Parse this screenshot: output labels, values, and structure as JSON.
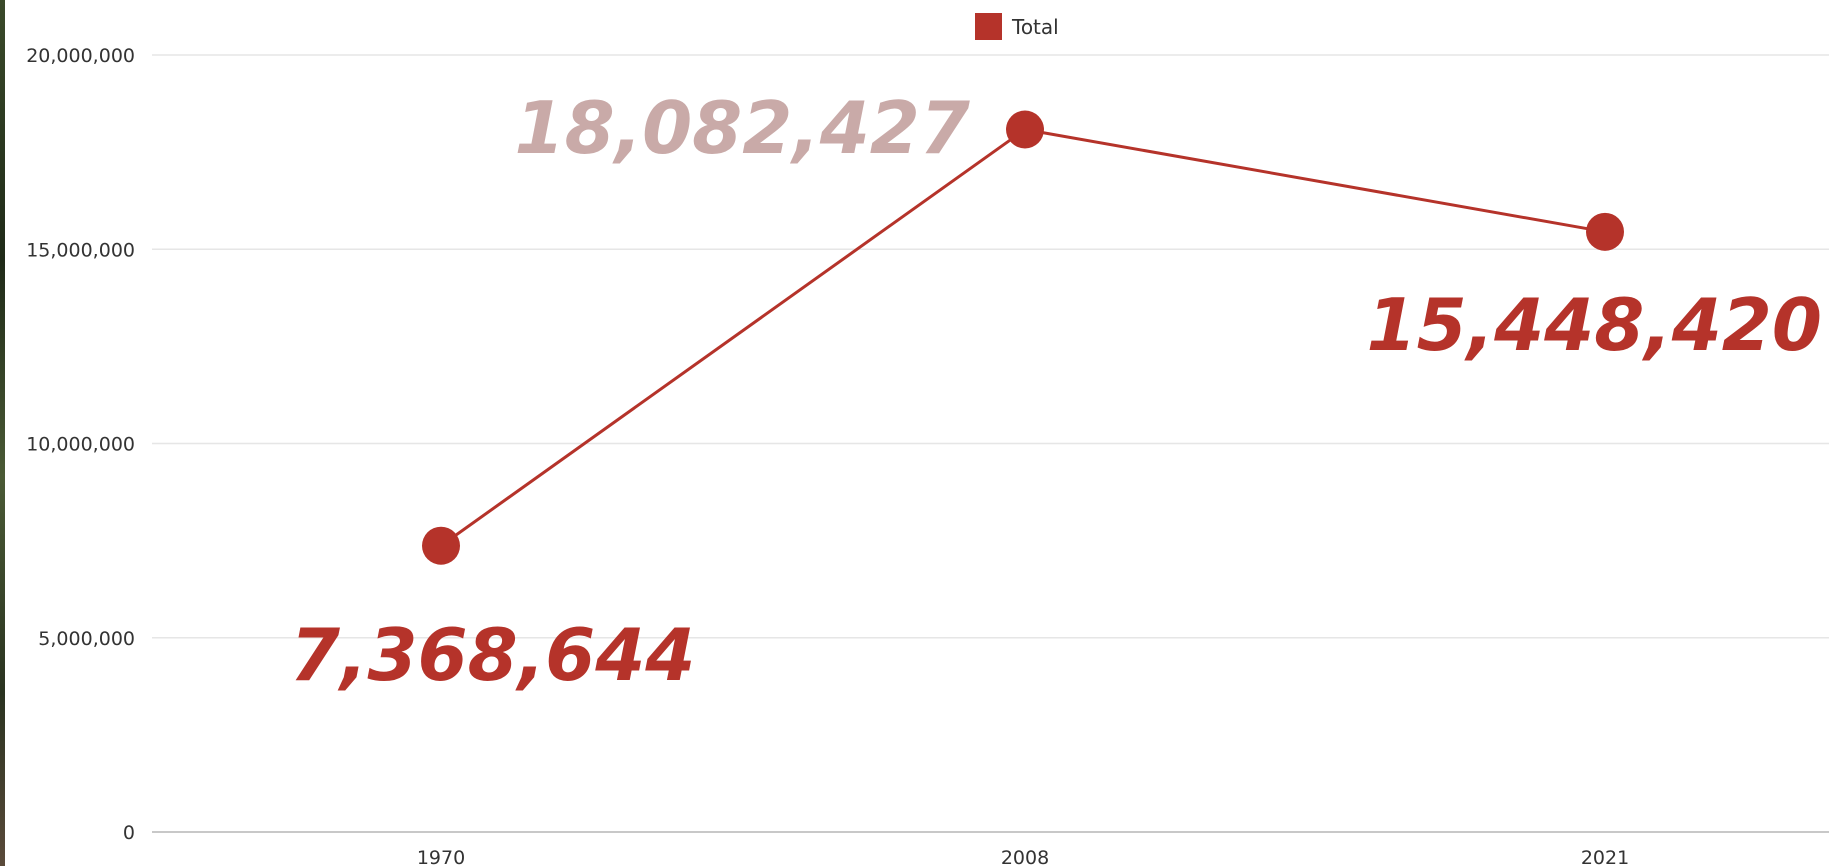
{
  "chart_data": {
    "type": "line",
    "categories": [
      "1970",
      "2008",
      "2021"
    ],
    "series": [
      {
        "name": "Total",
        "values": [
          7368644,
          18082427,
          15448420
        ],
        "color": "#b5332a"
      }
    ],
    "data_labels": [
      "7,368,644",
      "18,082,427",
      "15,448,420"
    ],
    "data_label_colors": [
      "#b5332a",
      "#c9aaa8",
      "#b5332a"
    ],
    "y_ticks": [
      {
        "value": 0,
        "label": "0"
      },
      {
        "value": 5000000,
        "label": "5,000,000"
      },
      {
        "value": 10000000,
        "label": "10,000,000"
      },
      {
        "value": 15000000,
        "label": "15,000,000"
      },
      {
        "value": 20000000,
        "label": "20,000,000"
      }
    ],
    "ylim": [
      0,
      20000000
    ],
    "grid": true,
    "legend": {
      "position": "top-center",
      "label": "Total",
      "color": "#b5332a"
    },
    "title": "",
    "xlabel": "",
    "ylabel": ""
  }
}
